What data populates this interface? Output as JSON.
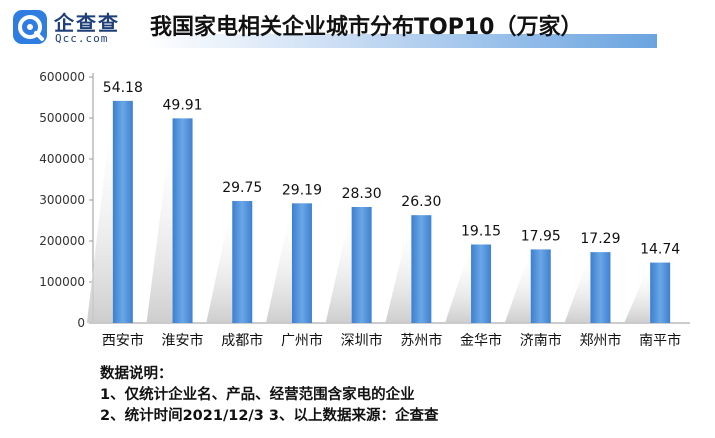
{
  "logo": {
    "name": "企查查",
    "sub": "Qcc.com"
  },
  "chart_data": {
    "type": "bar",
    "title": "我国家电相关企业城市分布TOP10（万家）",
    "categories": [
      "西安市",
      "淮安市",
      "成都市",
      "广州市",
      "深圳市",
      "苏州市",
      "金华市",
      "济南市",
      "郑州市",
      "南平市"
    ],
    "values": [
      541800,
      499100,
      297500,
      291900,
      283000,
      263000,
      191500,
      179500,
      172900,
      147400
    ],
    "data_labels": [
      "54.18",
      "49.91",
      "29.75",
      "29.19",
      "28.30",
      "26.30",
      "19.15",
      "17.95",
      "17.29",
      "14.74"
    ],
    "y_ticks": [
      "0",
      "100000",
      "200000",
      "300000",
      "400000",
      "500000",
      "600000"
    ],
    "ylim": [
      0,
      600000
    ],
    "bar_color": "#4f8fd6",
    "grid": false,
    "xlabel": "",
    "ylabel": ""
  },
  "notes": {
    "heading": "数据说明：",
    "line1": "1、仅统计企业名、产品、经营范围含家电的企业",
    "line2": "2、统计时间2021/12/3   3、以上数据来源：企查查"
  }
}
